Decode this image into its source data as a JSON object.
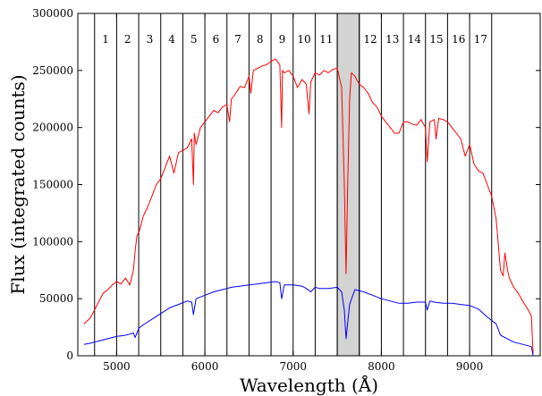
{
  "chart_data": {
    "type": "line",
    "title": "",
    "xlabel": "Wavelength (Å)",
    "ylabel": "Flux (integrated counts)",
    "xlim": [
      4560,
      9800
    ],
    "ylim": [
      0,
      300000
    ],
    "x_ticks": [
      5000,
      6000,
      7000,
      8000,
      9000
    ],
    "y_ticks": [
      0,
      50000,
      100000,
      150000,
      200000,
      250000,
      300000
    ],
    "x_tick_labels": [
      "5000",
      "6000",
      "7000",
      "8000",
      "9000"
    ],
    "y_tick_labels": [
      "0",
      "50000",
      "100000",
      "150000",
      "200000",
      "250000",
      "300000"
    ],
    "grid": false,
    "legend": "none",
    "bin_edges": [
      4750,
      5000,
      5250,
      5500,
      5750,
      6000,
      6250,
      6500,
      6750,
      7000,
      7250,
      7500,
      7750,
      8000,
      8250,
      8500,
      8750,
      9000,
      9250
    ],
    "bin_labels": [
      "1",
      "2",
      "3",
      "4",
      "5",
      "6",
      "7",
      "8",
      "9",
      "10",
      "11",
      "12",
      "13",
      "14",
      "15",
      "16",
      "17"
    ],
    "masked_region": [
      7500,
      7750
    ],
    "series": [
      {
        "color": "#ff0000",
        "x": [
          4630,
          4700,
          4750,
          4800,
          4850,
          4900,
          4950,
          5000,
          5050,
          5100,
          5150,
          5190,
          5210,
          5230,
          5260,
          5300,
          5350,
          5400,
          5450,
          5500,
          5550,
          5600,
          5650,
          5700,
          5750,
          5800,
          5850,
          5870,
          5880,
          5900,
          5950,
          6000,
          6050,
          6100,
          6150,
          6200,
          6250,
          6280,
          6300,
          6350,
          6400,
          6450,
          6500,
          6520,
          6550,
          6600,
          6650,
          6700,
          6750,
          6800,
          6850,
          6870,
          6880,
          6900,
          6950,
          7000,
          7050,
          7100,
          7150,
          7180,
          7200,
          7250,
          7300,
          7350,
          7400,
          7450,
          7500,
          7550,
          7580,
          7600,
          7620,
          7640,
          7660,
          7700,
          7750,
          7800,
          7850,
          7900,
          7950,
          8000,
          8050,
          8100,
          8150,
          8200,
          8250,
          8300,
          8350,
          8400,
          8450,
          8500,
          8520,
          8550,
          8600,
          8620,
          8650,
          8700,
          8750,
          8800,
          8850,
          8900,
          8950,
          9000,
          9050,
          9100,
          9150,
          9200,
          9250,
          9300,
          9350,
          9380,
          9400,
          9430,
          9450,
          9500,
          9550,
          9600,
          9650,
          9700,
          9720
        ],
        "values": [
          28000,
          33000,
          40000,
          48000,
          55000,
          58000,
          62000,
          65000,
          63000,
          68000,
          62000,
          75000,
          92000,
          105000,
          110000,
          122000,
          130000,
          140000,
          150000,
          155000,
          165000,
          175000,
          160000,
          178000,
          180000,
          182000,
          190000,
          150000,
          195000,
          185000,
          200000,
          205000,
          210000,
          215000,
          213000,
          218000,
          220000,
          205000,
          225000,
          230000,
          236000,
          235000,
          245000,
          230000,
          250000,
          252000,
          254000,
          255000,
          258000,
          260000,
          255000,
          200000,
          250000,
          248000,
          250000,
          245000,
          235000,
          242000,
          238000,
          212000,
          240000,
          248000,
          246000,
          250000,
          248000,
          251000,
          252000,
          235000,
          150000,
          72000,
          155000,
          225000,
          248000,
          245000,
          238000,
          235000,
          230000,
          222000,
          218000,
          210000,
          205000,
          200000,
          195000,
          195000,
          205000,
          205000,
          203000,
          202000,
          207000,
          200000,
          170000,
          205000,
          207000,
          190000,
          208000,
          207000,
          205000,
          200000,
          195000,
          190000,
          175000,
          185000,
          168000,
          162000,
          160000,
          150000,
          140000,
          120000,
          75000,
          70000,
          90000,
          75000,
          68000,
          60000,
          55000,
          48000,
          42000,
          35000,
          2000
        ]
      },
      {
        "color": "#0000ff",
        "x": [
          4630,
          4700,
          4750,
          4800,
          4850,
          4900,
          4950,
          5000,
          5050,
          5100,
          5150,
          5190,
          5210,
          5250,
          5300,
          5400,
          5500,
          5600,
          5700,
          5800,
          5850,
          5870,
          5900,
          6000,
          6100,
          6200,
          6300,
          6400,
          6500,
          6600,
          6700,
          6800,
          6850,
          6870,
          6900,
          7000,
          7100,
          7150,
          7200,
          7250,
          7300,
          7400,
          7500,
          7550,
          7580,
          7600,
          7640,
          7700,
          7800,
          7900,
          8000,
          8100,
          8200,
          8300,
          8400,
          8500,
          8520,
          8550,
          8600,
          8700,
          8800,
          8900,
          9000,
          9100,
          9200,
          9300,
          9350,
          9400,
          9500,
          9600,
          9700,
          9720
        ],
        "values": [
          10000,
          11000,
          12000,
          13000,
          14000,
          15000,
          16000,
          17000,
          17500,
          18000,
          19000,
          20000,
          16000,
          24000,
          27000,
          32000,
          37000,
          42000,
          45000,
          48000,
          47000,
          36000,
          50000,
          53000,
          56000,
          58000,
          60000,
          61000,
          62000,
          63000,
          64000,
          65000,
          64000,
          50000,
          62000,
          62000,
          61000,
          59000,
          56000,
          60000,
          59000,
          59000,
          60000,
          56000,
          40000,
          15000,
          45000,
          58000,
          56000,
          53000,
          50000,
          48000,
          46000,
          46000,
          47000,
          47000,
          40000,
          48000,
          47000,
          46000,
          46000,
          45000,
          44000,
          41000,
          34000,
          28000,
          18000,
          16000,
          12000,
          10000,
          8000,
          0
        ]
      }
    ]
  }
}
